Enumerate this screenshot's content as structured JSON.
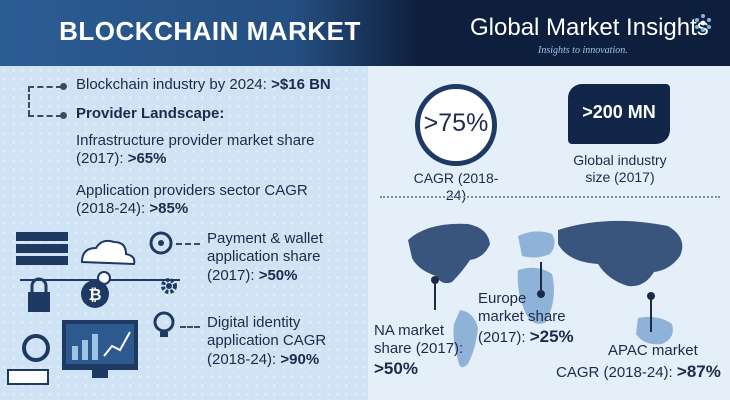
{
  "header": {
    "title": "BLOCKCHAIN MARKET",
    "brand_name": "Global Market Insights",
    "brand_tagline": "Insights to innovation."
  },
  "left": {
    "industry_label": "Blockchain industry by 2024:",
    "industry_value": ">$16 BN",
    "landscape_heading": "Provider Landscape:",
    "infra_line1": "Infrastructure provider market share",
    "infra_line2": "(2017):",
    "infra_value": ">65%",
    "app_line1": "Application providers sector CAGR",
    "app_line2": "(2018-24):",
    "app_value": ">85%",
    "payment_line1": "Payment & wallet",
    "payment_line2": "application share",
    "payment_line3": "(2017):",
    "payment_value": ">50%",
    "identity_line1": "Digital identity",
    "identity_line2": "application CAGR",
    "identity_line3": "(2018-24):",
    "identity_value": ">90%"
  },
  "right": {
    "cagr_value": ">75%",
    "cagr_label": "CAGR (2018-24)",
    "size_value": ">200 MN",
    "size_label_line1": "Global industry",
    "size_label_line2": "size (2017)",
    "na_line1": "NA market",
    "na_line2": "share (2017):",
    "na_value": ">50%",
    "europe_line1": "Europe",
    "europe_line2": "market share",
    "europe_line3": "(2017):",
    "europe_value": ">25%",
    "apac_line1": "APAC market",
    "apac_line2": "CAGR (2018-24):",
    "apac_value": ">87%"
  },
  "colors": {
    "navy": "#0e1f3e",
    "header_blue": "#2b5c93",
    "left_bg": "#cfe3f5",
    "right_bg": "#e4eff9",
    "text": "#1c2b4a"
  },
  "icons": [
    "server-stack-icon",
    "cloud-icon",
    "lightbulb-icon",
    "bitcoin-icon",
    "padlock-icon",
    "monitor-chart-icon",
    "gear-icon",
    "world-map-icon"
  ]
}
